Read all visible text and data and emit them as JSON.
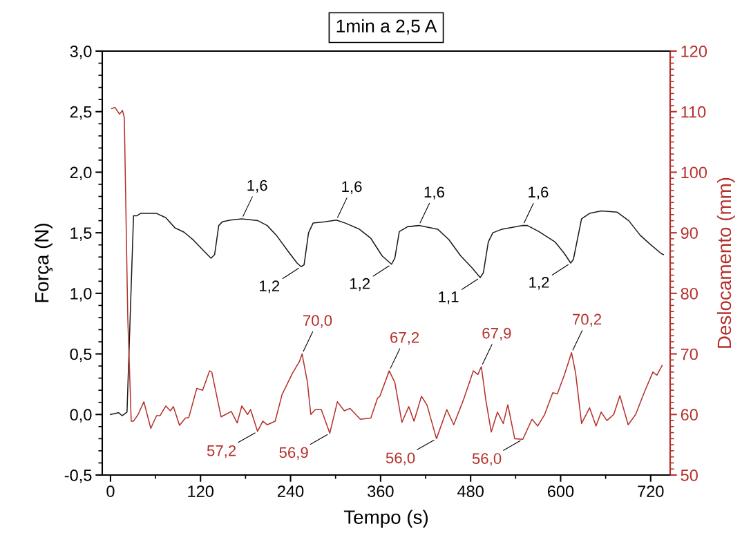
{
  "chart_data": {
    "type": "line",
    "title": "1min a 2,5 A",
    "xlabel": "Tempo (s)",
    "ylabel": "Força (N)",
    "y2label": "Deslocamento (mm)",
    "xlim": [
      -11,
      746
    ],
    "xticks": [
      0,
      120,
      240,
      360,
      480,
      600,
      720
    ],
    "ylim": [
      -0.5,
      3.0
    ],
    "yticks": [
      {
        "value": -0.5,
        "label": "-0,5"
      },
      {
        "value": 0,
        "label": "0,0"
      },
      {
        "value": 0.5,
        "label": "0,5"
      },
      {
        "value": 1.0,
        "label": "1,0"
      },
      {
        "value": 1.5,
        "label": "1,5"
      },
      {
        "value": 2.0,
        "label": "2,0"
      },
      {
        "value": 2.5,
        "label": "2,5"
      },
      {
        "value": 3.0,
        "label": "3,0"
      }
    ],
    "y2lim": [
      50,
      120
    ],
    "y2ticks": [
      50,
      60,
      70,
      80,
      90,
      100,
      110,
      120
    ],
    "grid": false,
    "legend": false,
    "series": [
      {
        "color": "#1a1a1a",
        "x": [
          0,
          10.8,
          15.4,
          22,
          30.7,
          35,
          40,
          61.4,
          73.7,
          86,
          98,
          110.5,
          126,
          134,
          138.8,
          144.3,
          149,
          159.6,
          175,
          196.5,
          208.8,
          221,
          236.4,
          248.7,
          254,
          258,
          264,
          270,
          285.5,
          301,
          313,
          331.6,
          347,
          362,
          374.6,
          379,
          385,
          396,
          411,
          436,
          451,
          466.7,
          482,
          492.8,
          497,
          503.6,
          509.6,
          522,
          549.6,
          555.7,
          571,
          592.5,
          604.9,
          613.4,
          617,
          627.9,
          638.6,
          654,
          675.4,
          690.8,
          706,
          718.4,
          733.8,
          737
        ],
        "values": [
          0,
          0.015,
          -0.01,
          0.02,
          1.64,
          1.64,
          1.66,
          1.66,
          1.625,
          1.54,
          1.505,
          1.44,
          1.34,
          1.29,
          1.32,
          1.56,
          1.59,
          1.605,
          1.615,
          1.6,
          1.56,
          1.48,
          1.35,
          1.25,
          1.22,
          1.235,
          1.5,
          1.58,
          1.59,
          1.605,
          1.58,
          1.53,
          1.454,
          1.31,
          1.24,
          1.29,
          1.51,
          1.55,
          1.56,
          1.53,
          1.444,
          1.31,
          1.21,
          1.13,
          1.17,
          1.425,
          1.5,
          1.53,
          1.56,
          1.56,
          1.51,
          1.425,
          1.33,
          1.25,
          1.28,
          1.615,
          1.66,
          1.68,
          1.67,
          1.6,
          1.48,
          1.41,
          1.33,
          1.32
        ]
      },
      {
        "color": "#b5302a",
        "axis": "y2",
        "x": [
          1.5,
          6,
          12,
          16,
          18.4,
          23,
          27.6,
          30.7,
          36.8,
          44.5,
          53.7,
          61.4,
          66,
          73.7,
          79.9,
          83.8,
          92,
          99.8,
          104.4,
          115,
          122.8,
          132,
          135,
          147.4,
          153.5,
          161,
          168.9,
          175,
          182.7,
          186.7,
          196,
          203,
          208.8,
          219.5,
          228.7,
          242.5,
          251.7,
          255.4,
          262.5,
          267,
          273,
          281,
          292.3,
          302.4,
          311.6,
          319.3,
          333,
          347,
          356,
          359,
          371.5,
          379,
          388.4,
          397.6,
          404.6,
          414.5,
          422,
          434.5,
          448.3,
          457.5,
          471.3,
          483.6,
          489.7,
          494.3,
          500.4,
          507.5,
          515.8,
          523.5,
          529.6,
          538.8,
          549.6,
          561.8,
          569.5,
          578.7,
          589.5,
          595.6,
          604.9,
          614.6,
          620,
          627.9,
          638.6,
          647.2,
          654,
          661.6,
          670.8,
          679,
          690,
          700,
          712,
          723,
          728.3,
          735.3
        ],
        "values": [
          110.5,
          110.7,
          109.6,
          110.2,
          109,
          76,
          58.9,
          58.9,
          60,
          62.1,
          57.7,
          59.8,
          59.8,
          61.4,
          60.6,
          61.3,
          58.2,
          59.4,
          59.5,
          64.3,
          64,
          67.2,
          67,
          59.6,
          60,
          60.5,
          58.6,
          61.4,
          60,
          60.8,
          57.2,
          58.9,
          58.3,
          58.9,
          63.3,
          66.8,
          68.7,
          70.0,
          65.3,
          60,
          60.8,
          60.8,
          56.9,
          62.1,
          60.6,
          61,
          59.2,
          59.4,
          62.7,
          63,
          67.2,
          65.3,
          58.7,
          61.3,
          58.9,
          63,
          61.5,
          56.0,
          60.8,
          58.3,
          62.7,
          67.2,
          66.6,
          67.9,
          62.3,
          57.1,
          60.4,
          58.5,
          61.6,
          56.0,
          55.9,
          59.2,
          58.1,
          60,
          63.6,
          63.4,
          66.5,
          70.2,
          66.8,
          58.5,
          61.1,
          58.1,
          60.4,
          59,
          60,
          63.1,
          58.3,
          60,
          63.8,
          67.0,
          66.5,
          68.1
        ]
      }
    ],
    "annotations": [
      {
        "text": "1,6",
        "x": 175,
        "y": 1.615
      },
      {
        "text": "1,6",
        "x": 301,
        "y": 1.605
      },
      {
        "text": "1,6",
        "x": 411,
        "y": 1.56
      },
      {
        "text": "1,6",
        "x": 549.6,
        "y": 1.56
      },
      {
        "text": "1,2",
        "x": 254,
        "y": 1.22
      },
      {
        "text": "1,2",
        "x": 374.6,
        "y": 1.24
      },
      {
        "text": "1,1",
        "x": 492.8,
        "y": 1.13
      },
      {
        "text": "1,2",
        "x": 613.4,
        "y": 1.25
      },
      {
        "text": "70,0",
        "x": 255.4,
        "y": 0.5
      },
      {
        "text": "67,2",
        "x": 371.5,
        "y": 0.36
      },
      {
        "text": "67,9",
        "x": 494.3,
        "y": 0.395
      },
      {
        "text": "70,2",
        "x": 614.6,
        "y": 0.51
      },
      {
        "text": "57,2",
        "x": 196,
        "y": -0.14
      },
      {
        "text": "56,9",
        "x": 292.3,
        "y": -0.155
      },
      {
        "text": "56,0",
        "x": 434.5,
        "y": -0.2
      },
      {
        "text": "56,0",
        "x": 549.6,
        "y": -0.205
      }
    ]
  }
}
